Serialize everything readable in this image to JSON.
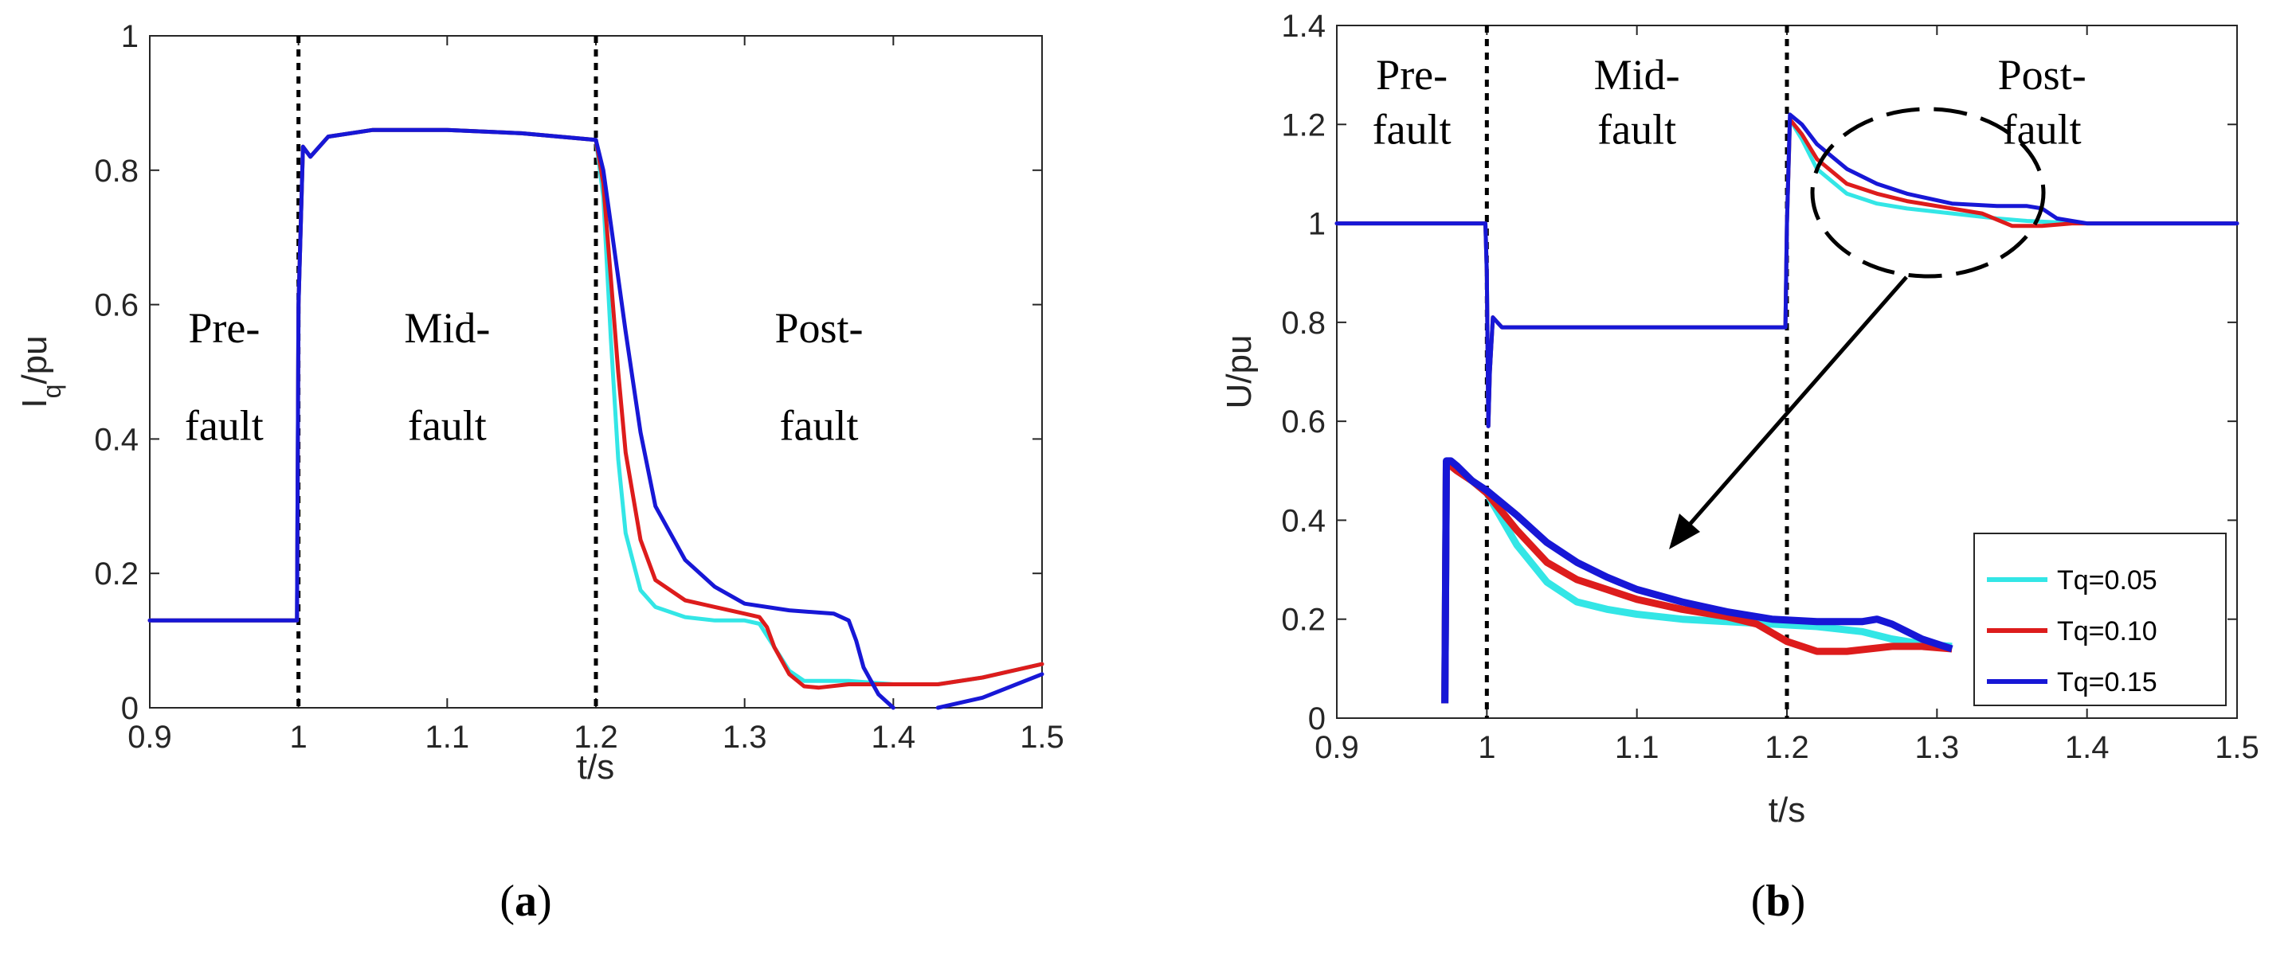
{
  "chart_data": [
    {
      "type": "line",
      "panel": "a",
      "caption": "(a)",
      "xlabel": "t/s",
      "ylabel": "I",
      "ylabel_sub": "q",
      "ylabel_suffix": "/pu",
      "xlim": [
        0.9,
        1.5
      ],
      "ylim": [
        0,
        1
      ],
      "xticks": [
        0.9,
        1.0,
        1.1,
        1.2,
        1.3,
        1.4,
        1.5
      ],
      "xtick_labels": [
        "0.9",
        "1",
        "1.1",
        "1.2",
        "1.3",
        "1.4",
        "1.5"
      ],
      "yticks": [
        0,
        0.2,
        0.4,
        0.6,
        0.8,
        1.0
      ],
      "ytick_labels": [
        "0",
        "0.2",
        "0.4",
        "0.6",
        "0.8",
        "1"
      ],
      "fault_lines": [
        1.0,
        1.2
      ],
      "regions": [
        {
          "lines": [
            "Pre-",
            "fault"
          ],
          "x": 0.95,
          "y": [
            0.565,
            0.42
          ]
        },
        {
          "lines": [
            "Mid-",
            "fault"
          ],
          "x": 1.1,
          "y": [
            0.565,
            0.42
          ]
        },
        {
          "lines": [
            "Post-",
            "fault"
          ],
          "x": 1.35,
          "y": [
            0.565,
            0.42
          ]
        }
      ],
      "series": [
        {
          "name": "Tq=0.05",
          "color": "#33e6e6",
          "x": [
            0.9,
            0.999,
            1.0,
            1.003,
            1.008,
            1.02,
            1.05,
            1.1,
            1.15,
            1.2,
            1.205,
            1.21,
            1.215,
            1.22,
            1.23,
            1.24,
            1.26,
            1.28,
            1.3,
            1.31,
            1.32,
            1.33,
            1.34,
            1.35,
            1.37,
            1.4,
            1.43,
            1.46,
            1.5
          ],
          "y": [
            0.13,
            0.13,
            0.6,
            0.835,
            0.82,
            0.85,
            0.86,
            0.86,
            0.855,
            0.845,
            0.76,
            0.55,
            0.37,
            0.26,
            0.175,
            0.15,
            0.135,
            0.13,
            0.13,
            0.125,
            0.09,
            0.055,
            0.04,
            0.04,
            0.04,
            0.035,
            0.035,
            0.045,
            0.065
          ]
        },
        {
          "name": "Tq=0.10",
          "color": "#dd1c1c",
          "x": [
            0.9,
            0.999,
            1.0,
            1.003,
            1.008,
            1.02,
            1.05,
            1.1,
            1.15,
            1.2,
            1.205,
            1.21,
            1.215,
            1.22,
            1.23,
            1.24,
            1.26,
            1.28,
            1.3,
            1.31,
            1.315,
            1.32,
            1.33,
            1.34,
            1.35,
            1.37,
            1.4,
            1.43,
            1.46,
            1.5
          ],
          "y": [
            0.13,
            0.13,
            0.6,
            0.835,
            0.82,
            0.85,
            0.86,
            0.86,
            0.855,
            0.845,
            0.78,
            0.64,
            0.5,
            0.38,
            0.25,
            0.19,
            0.16,
            0.15,
            0.14,
            0.135,
            0.12,
            0.09,
            0.05,
            0.032,
            0.03,
            0.035,
            0.035,
            0.035,
            0.045,
            0.065
          ]
        },
        {
          "name": "Tq=0.15",
          "color": "#1717d6",
          "x": [
            0.9,
            0.999,
            1.0,
            1.003,
            1.008,
            1.02,
            1.05,
            1.1,
            1.15,
            1.2,
            1.205,
            1.21,
            1.22,
            1.23,
            1.24,
            1.26,
            1.28,
            1.3,
            1.33,
            1.36,
            1.37,
            1.375,
            1.38,
            1.39,
            1.4,
            null,
            1.43,
            1.46,
            1.5
          ],
          "y": [
            0.13,
            0.13,
            0.6,
            0.835,
            0.82,
            0.85,
            0.86,
            0.86,
            0.855,
            0.845,
            0.8,
            0.72,
            0.56,
            0.41,
            0.3,
            0.22,
            0.18,
            0.155,
            0.145,
            0.14,
            0.13,
            0.1,
            0.06,
            0.02,
            0.0,
            null,
            0.0,
            0.015,
            0.05
          ]
        }
      ]
    },
    {
      "type": "line",
      "panel": "b",
      "caption": "(b)",
      "xlabel": "t/s",
      "ylabel": "U/pu",
      "xlim": [
        0.9,
        1.5
      ],
      "ylim": [
        0,
        1.4
      ],
      "xticks": [
        0.9,
        1.0,
        1.1,
        1.2,
        1.3,
        1.4,
        1.5
      ],
      "xtick_labels": [
        "0.9",
        "1",
        "1.1",
        "1.2",
        "1.3",
        "1.4",
        "1.5"
      ],
      "yticks": [
        0,
        0.2,
        0.4,
        0.6,
        0.8,
        1.0,
        1.2,
        1.4
      ],
      "ytick_labels": [
        "0",
        "0.2",
        "0.4",
        "0.6",
        "0.8",
        "1",
        "1.2",
        "1.4"
      ],
      "fault_lines": [
        1.0,
        1.2
      ],
      "regions": [
        {
          "lines": [
            "Pre-",
            "fault"
          ],
          "x": 0.95,
          "y": [
            1.3,
            1.19
          ]
        },
        {
          "lines": [
            "Mid-",
            "fault"
          ],
          "x": 1.1,
          "y": [
            1.3,
            1.19
          ]
        },
        {
          "lines": [
            "Post-",
            "fault"
          ],
          "x": 1.37,
          "y": [
            1.3,
            1.19
          ]
        }
      ],
      "legend": {
        "location": "lower-right",
        "entries": [
          "Tq=0.05",
          "Tq=0.10",
          "Tq=0.15"
        ]
      },
      "series": [
        {
          "name": "Tq=0.05",
          "color": "#33e6e6",
          "x": [
            0.9,
            0.999,
            1.0,
            1.001,
            1.002,
            1.004,
            1.007,
            1.01,
            1.02,
            1.1,
            1.199,
            1.2,
            1.202,
            1.21,
            1.22,
            1.24,
            1.26,
            1.28,
            1.31,
            1.34,
            1.36,
            1.38,
            1.4,
            1.45,
            1.5
          ],
          "y": [
            1.0,
            1.0,
            0.9,
            0.59,
            0.7,
            0.81,
            0.8,
            0.79,
            0.79,
            0.79,
            0.79,
            1.0,
            1.21,
            1.17,
            1.11,
            1.06,
            1.04,
            1.03,
            1.02,
            1.01,
            1.005,
            1.002,
            1.0,
            1.0,
            1.0
          ]
        },
        {
          "name": "Tq=0.10",
          "color": "#dd1c1c",
          "x": [
            0.9,
            0.999,
            1.0,
            1.001,
            1.002,
            1.004,
            1.007,
            1.01,
            1.02,
            1.1,
            1.199,
            1.2,
            1.202,
            1.21,
            1.22,
            1.24,
            1.26,
            1.28,
            1.3,
            1.33,
            1.35,
            1.37,
            1.39,
            1.42,
            1.5
          ],
          "y": [
            1.0,
            1.0,
            0.9,
            0.59,
            0.7,
            0.81,
            0.8,
            0.79,
            0.79,
            0.79,
            0.79,
            1.0,
            1.21,
            1.18,
            1.13,
            1.08,
            1.06,
            1.045,
            1.035,
            1.02,
            0.995,
            0.995,
            1.0,
            1.0,
            1.0
          ]
        },
        {
          "name": "Tq=0.15",
          "color": "#1717d6",
          "x": [
            0.9,
            0.999,
            1.0,
            1.001,
            1.002,
            1.004,
            1.007,
            1.01,
            1.02,
            1.1,
            1.199,
            1.2,
            1.202,
            1.21,
            1.22,
            1.24,
            1.26,
            1.28,
            1.31,
            1.34,
            1.36,
            1.37,
            1.38,
            1.4,
            1.45,
            1.5
          ],
          "y": [
            1.0,
            1.0,
            0.9,
            0.59,
            0.7,
            0.81,
            0.8,
            0.79,
            0.79,
            0.79,
            0.79,
            1.0,
            1.22,
            1.2,
            1.16,
            1.11,
            1.08,
            1.06,
            1.04,
            1.035,
            1.035,
            1.03,
            1.01,
            1.0,
            1.0,
            1.0
          ]
        }
      ],
      "inset": {
        "note": "magnified view of the post-fault overshoot",
        "series": [
          {
            "name": "Tq=0.05",
            "color": "#33e6e6",
            "x": [
              0.972,
              0.973,
              0.976,
              0.98,
              0.99,
              1.0,
              1.02,
              1.04,
              1.06,
              1.08,
              1.1,
              1.13,
              1.16,
              1.19,
              1.22,
              1.25,
              1.27,
              1.29,
              1.31
            ],
            "y": [
              0.03,
              0.51,
              0.51,
              0.5,
              0.48,
              0.455,
              0.35,
              0.275,
              0.235,
              0.22,
              0.21,
              0.2,
              0.195,
              0.19,
              0.185,
              0.175,
              0.16,
              0.15,
              0.145
            ]
          },
          {
            "name": "Tq=0.10",
            "color": "#dd1c1c",
            "x": [
              0.972,
              0.973,
              0.976,
              0.98,
              0.99,
              1.0,
              1.02,
              1.04,
              1.06,
              1.08,
              1.1,
              1.13,
              1.16,
              1.18,
              1.2,
              1.22,
              1.24,
              1.27,
              1.29,
              1.31
            ],
            "y": [
              0.03,
              0.51,
              0.51,
              0.5,
              0.48,
              0.455,
              0.38,
              0.315,
              0.28,
              0.26,
              0.24,
              0.22,
              0.205,
              0.19,
              0.155,
              0.135,
              0.135,
              0.145,
              0.145,
              0.14
            ]
          },
          {
            "name": "Tq=0.15",
            "color": "#1717d6",
            "x": [
              0.972,
              0.973,
              0.976,
              0.98,
              0.99,
              1.0,
              1.02,
              1.04,
              1.06,
              1.08,
              1.1,
              1.13,
              1.16,
              1.19,
              1.22,
              1.25,
              1.26,
              1.27,
              1.28,
              1.29,
              1.31
            ],
            "y": [
              0.03,
              0.52,
              0.52,
              0.51,
              0.48,
              0.46,
              0.41,
              0.355,
              0.315,
              0.285,
              0.26,
              0.235,
              0.215,
              0.2,
              0.195,
              0.195,
              0.2,
              0.19,
              0.175,
              0.16,
              0.14
            ]
          }
        ]
      }
    }
  ]
}
